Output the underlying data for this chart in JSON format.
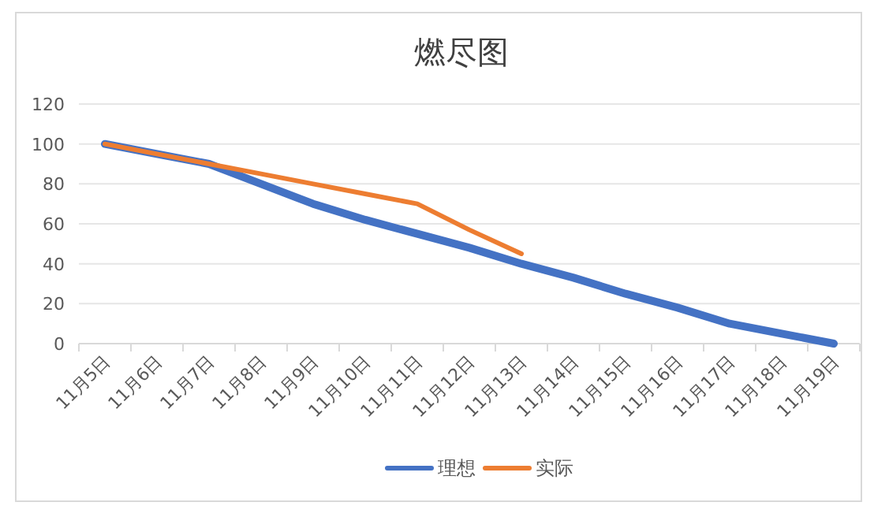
{
  "chart_data": {
    "type": "line",
    "title": "燃尽图",
    "categories": [
      "11月5日",
      "11月6日",
      "11月7日",
      "11月8日",
      "11月9日",
      "11月10日",
      "11月11日",
      "11月12日",
      "11月13日",
      "11月14日",
      "11月15日",
      "11月16日",
      "11月17日",
      "11月18日",
      "11月19日"
    ],
    "series": [
      {
        "name": "理想",
        "color": "#4472c4",
        "values": [
          100,
          95,
          90,
          80,
          70,
          62,
          55,
          48,
          40,
          33,
          25,
          18,
          10,
          5,
          0
        ]
      },
      {
        "name": "实际",
        "color": "#ed7d31",
        "values": [
          100,
          95,
          90,
          85,
          80,
          75,
          70,
          57,
          45,
          null,
          null,
          null,
          null,
          null,
          null
        ]
      }
    ],
    "ylim": [
      0,
      120
    ],
    "yticks": [
      0,
      20,
      40,
      60,
      80,
      100,
      120
    ],
    "grid": "y",
    "legend": "bottom",
    "marker": "none",
    "line_style": "solid"
  }
}
